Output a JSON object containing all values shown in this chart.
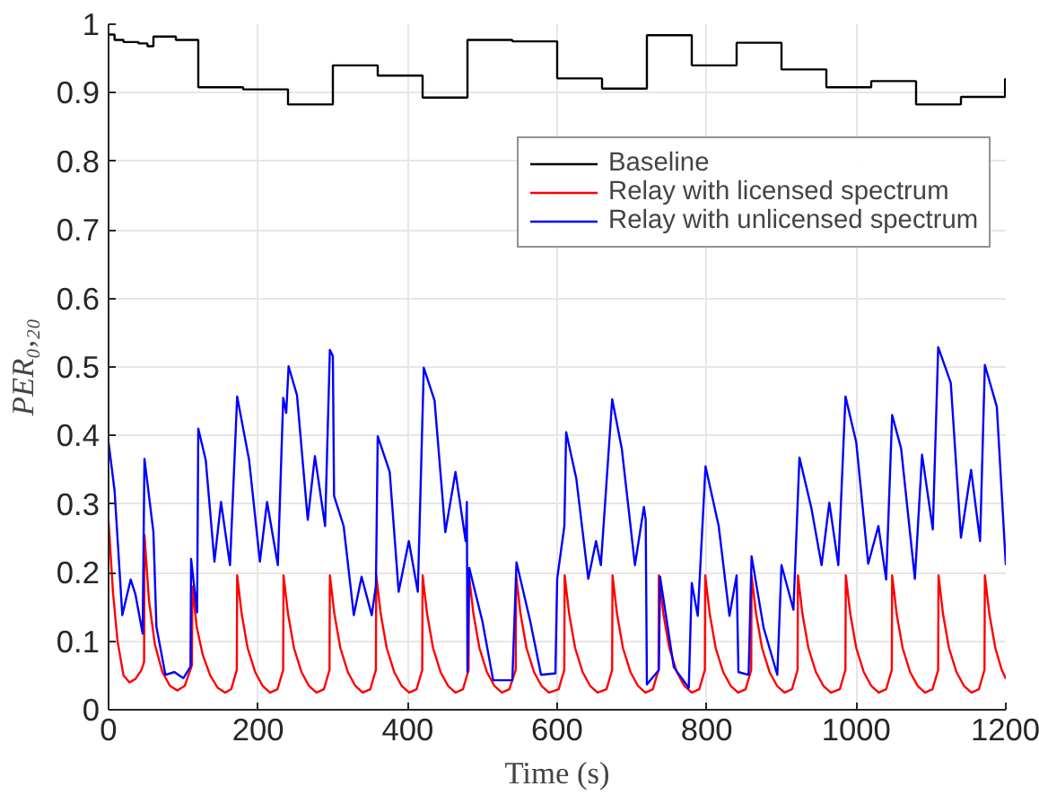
{
  "chart_data": {
    "type": "line",
    "xlabel": "Time (s)",
    "ylabel": "PER₀,₂₀",
    "xlim": [
      0,
      1200
    ],
    "ylim": [
      0,
      1
    ],
    "xticks": [
      0,
      200,
      400,
      600,
      800,
      1000,
      1200
    ],
    "yticks": [
      0,
      0.1,
      0.2,
      0.3,
      0.4,
      0.5,
      0.6,
      0.7,
      0.8,
      0.9,
      1
    ],
    "grid": true,
    "legend": "top right",
    "series": [
      {
        "name": "Baseline",
        "color": "#000000",
        "type": "step",
        "x": [
          0,
          8,
          20,
          40,
          52,
          60,
          90,
          120,
          180,
          240,
          300,
          360,
          420,
          480,
          540,
          600,
          660,
          720,
          780,
          840,
          900,
          960,
          1020,
          1080,
          1140,
          1199,
          1200
        ],
        "values": [
          0.985,
          0.977,
          0.974,
          0.972,
          0.968,
          0.982,
          0.977,
          0.908,
          0.905,
          0.883,
          0.94,
          0.925,
          0.893,
          0.977,
          0.975,
          0.921,
          0.906,
          0.984,
          0.94,
          0.973,
          0.934,
          0.908,
          0.917,
          0.883,
          0.894,
          0.92,
          0.92
        ]
      },
      {
        "name": "Relay with licensed spectrum",
        "color": "#ff0000",
        "x": [
          0,
          6,
          12,
          20,
          28,
          36,
          44,
          47.5,
          48,
          54,
          62,
          72,
          82,
          92,
          102,
          111.5,
          112,
          118,
          126,
          136,
          146,
          156,
          164,
          171.5,
          172,
          178,
          186,
          196,
          206,
          216,
          226,
          233.5,
          234,
          240,
          248,
          258,
          268,
          278,
          288,
          295.5,
          296,
          302,
          310,
          320,
          330,
          340,
          350,
          357.5,
          358,
          364,
          372,
          382,
          392,
          402,
          412,
          419.5,
          420,
          426,
          434,
          444,
          454,
          464,
          474,
          481.5,
          482,
          488,
          496,
          506,
          516,
          526,
          536,
          544.5,
          545,
          551,
          559,
          569,
          579,
          589,
          602,
          609.5,
          610,
          616,
          624,
          634,
          644,
          654,
          666,
          673.5,
          674,
          680,
          688,
          698,
          708,
          718,
          728,
          735.5,
          736,
          742,
          750,
          760,
          770,
          780,
          790,
          797.5,
          798,
          804,
          812,
          822,
          832,
          842,
          852,
          859.5,
          860,
          866,
          874,
          884,
          894,
          904,
          914,
          921.5,
          922,
          928,
          936,
          946,
          956,
          966,
          978,
          985.5,
          986,
          992,
          1000,
          1010,
          1020,
          1030,
          1040,
          1047.5,
          1048,
          1054,
          1062,
          1072,
          1082,
          1092,
          1102,
          1109.5,
          1110,
          1116,
          1124,
          1134,
          1144,
          1154,
          1164,
          1171.5,
          1172,
          1178,
          1186,
          1194,
          1200
        ],
        "values": [
          0.275,
          0.17,
          0.1,
          0.05,
          0.04,
          0.045,
          0.058,
          0.07,
          0.255,
          0.16,
          0.095,
          0.055,
          0.035,
          0.028,
          0.035,
          0.065,
          0.18,
          0.12,
          0.08,
          0.05,
          0.032,
          0.025,
          0.03,
          0.058,
          0.196,
          0.14,
          0.09,
          0.055,
          0.035,
          0.025,
          0.03,
          0.058,
          0.196,
          0.14,
          0.09,
          0.055,
          0.035,
          0.025,
          0.03,
          0.058,
          0.196,
          0.14,
          0.09,
          0.055,
          0.035,
          0.025,
          0.03,
          0.058,
          0.196,
          0.14,
          0.09,
          0.055,
          0.035,
          0.025,
          0.03,
          0.058,
          0.196,
          0.14,
          0.09,
          0.055,
          0.035,
          0.025,
          0.03,
          0.058,
          0.196,
          0.14,
          0.09,
          0.055,
          0.035,
          0.025,
          0.03,
          0.058,
          0.196,
          0.14,
          0.09,
          0.055,
          0.035,
          0.025,
          0.03,
          0.058,
          0.196,
          0.14,
          0.09,
          0.055,
          0.035,
          0.025,
          0.03,
          0.058,
          0.196,
          0.14,
          0.09,
          0.055,
          0.035,
          0.025,
          0.03,
          0.058,
          0.196,
          0.14,
          0.09,
          0.055,
          0.035,
          0.025,
          0.03,
          0.058,
          0.196,
          0.14,
          0.09,
          0.055,
          0.035,
          0.025,
          0.03,
          0.058,
          0.196,
          0.14,
          0.09,
          0.055,
          0.035,
          0.025,
          0.03,
          0.058,
          0.196,
          0.14,
          0.09,
          0.055,
          0.035,
          0.025,
          0.03,
          0.058,
          0.196,
          0.14,
          0.09,
          0.055,
          0.035,
          0.025,
          0.03,
          0.058,
          0.196,
          0.14,
          0.09,
          0.055,
          0.035,
          0.025,
          0.03,
          0.058,
          0.196,
          0.14,
          0.09,
          0.055,
          0.035,
          0.025,
          0.03,
          0.058,
          0.196,
          0.14,
          0.09,
          0.06,
          0.045
        ]
      },
      {
        "name": "Relay with unlicensed spectrum",
        "color": "#0000ff",
        "x": [
          0,
          8,
          18.4,
          29.6,
          36,
          45.6,
          48,
          60,
          64,
          76,
          88,
          100,
          109.6,
          110.4,
          118.4,
          120,
          130,
          141.6,
          150.4,
          162.4,
          172,
          188,
          202.4,
          212,
          226.4,
          233.6,
          237.6,
          240.8,
          252,
          266.4,
          276,
          289.6,
          296,
          300,
          301.6,
          314.4,
          328,
          338.4,
          352,
          357.6,
          360,
          376,
          388,
          401.6,
          413.6,
          421.6,
          436,
          450.4,
          464,
          477.6,
          479.2,
          480,
          482.4,
          500,
          514.4,
          540,
          545.6,
          564,
          578.4,
          597.6,
          600,
          609.6,
          612,
          625.6,
          641.6,
          652,
          658.4,
          673.6,
          686.4,
          704,
          716,
          718.4,
          720,
          736,
          737.6,
          756,
          776,
          780,
          788,
          798.4,
          816,
          830.4,
          840,
          842.4,
          856,
          860,
          876,
          894.4,
          900,
          916,
          924,
          940,
          953.6,
          964,
          976,
          985.6,
          1000,
          1016,
          1029.6,
          1040,
          1048,
          1060,
          1078.4,
          1088,
          1102.4,
          1109.6,
          1126.4,
          1140,
          1153.6,
          1165.6,
          1172,
          1188,
          1200
        ],
        "values": [
          0.39,
          0.32,
          0.138,
          0.19,
          0.168,
          0.111,
          0.366,
          0.259,
          0.121,
          0.051,
          0.055,
          0.046,
          0.063,
          0.22,
          0.142,
          0.41,
          0.364,
          0.216,
          0.303,
          0.211,
          0.457,
          0.364,
          0.216,
          0.303,
          0.211,
          0.455,
          0.433,
          0.501,
          0.459,
          0.277,
          0.37,
          0.268,
          0.525,
          0.516,
          0.312,
          0.268,
          0.138,
          0.194,
          0.138,
          0.181,
          0.399,
          0.347,
          0.172,
          0.246,
          0.172,
          0.499,
          0.451,
          0.259,
          0.347,
          0.246,
          0.303,
          0.055,
          0.207,
          0.129,
          0.043,
          0.043,
          0.215,
          0.129,
          0.051,
          0.053,
          0.191,
          0.268,
          0.405,
          0.337,
          0.191,
          0.246,
          0.211,
          0.453,
          0.381,
          0.211,
          0.296,
          0.277,
          0.037,
          0.058,
          0.194,
          0.062,
          0.032,
          0.185,
          0.137,
          0.355,
          0.268,
          0.137,
          0.196,
          0.055,
          0.051,
          0.224,
          0.12,
          0.051,
          0.211,
          0.146,
          0.368,
          0.294,
          0.211,
          0.302,
          0.211,
          0.457,
          0.39,
          0.213,
          0.268,
          0.19,
          0.43,
          0.381,
          0.191,
          0.372,
          0.263,
          0.529,
          0.477,
          0.251,
          0.35,
          0.246,
          0.503,
          0.442,
          0.211
        ]
      }
    ]
  }
}
